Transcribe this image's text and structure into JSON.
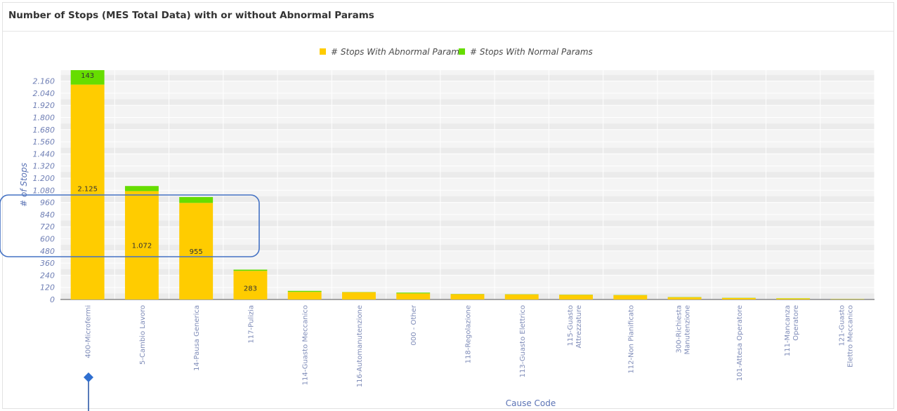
{
  "panel": {
    "title": "Number of Stops (MES Total Data) with or without Abnormal Params"
  },
  "chart_data": {
    "type": "bar",
    "stacked": true,
    "title": "",
    "xlabel": "Cause Code",
    "ylabel": "# of Stops",
    "ylim": [
      0,
      2160
    ],
    "yticks": [
      0,
      120,
      240,
      360,
      480,
      600,
      720,
      840,
      960,
      1080,
      1200,
      1320,
      1440,
      1560,
      1680,
      1800,
      1920,
      2040,
      2160
    ],
    "ytick_labels": [
      "0",
      "120",
      "240",
      "360",
      "480",
      "600",
      "720",
      "840",
      "960",
      "1.080",
      "1.200",
      "1.320",
      "1.440",
      "1.560",
      "1.680",
      "1.800",
      "1.920",
      "2.040",
      "2.160"
    ],
    "legend_position": "top-center",
    "grid": true,
    "categories": [
      "400-Microfermi",
      "5-Cambio Lavoro",
      "14-Pausa Generica",
      "117-Pulizia",
      "114-Guasto Meccanico",
      "116-Automanutenzione",
      "000 - Other",
      "118-Regolazione",
      "113-Guasto Elettrico",
      "115-Guasto Attrezzature",
      "112-Non Pianificato",
      "300-Richiesta Manutenzione",
      "101-Attesa Operatore",
      "111-Mancanza Operatore",
      "121-Guasto Elettro Meccanico"
    ],
    "series": [
      {
        "name": "# Stops With Abnormal Params",
        "color": "#ffcc00",
        "values": [
          2125,
          1072,
          955,
          283,
          75,
          72,
          60,
          52,
          50,
          45,
          42,
          22,
          14,
          10,
          3
        ],
        "labels": [
          "2.125",
          "1.072",
          "955",
          "283",
          "",
          "",
          "",
          "",
          "",
          "",
          "",
          "",
          "",
          "",
          ""
        ]
      },
      {
        "name": "# Stops With Normal Params",
        "color": "#66dd00",
        "values": [
          143,
          50,
          58,
          12,
          10,
          2,
          8,
          2,
          2,
          2,
          2,
          2,
          2,
          2,
          1
        ],
        "labels": [
          "143",
          "",
          "",
          "",
          "",
          "",
          "",
          "",
          "",
          "",
          "",
          "",
          "",
          "",
          ""
        ]
      }
    ]
  }
}
